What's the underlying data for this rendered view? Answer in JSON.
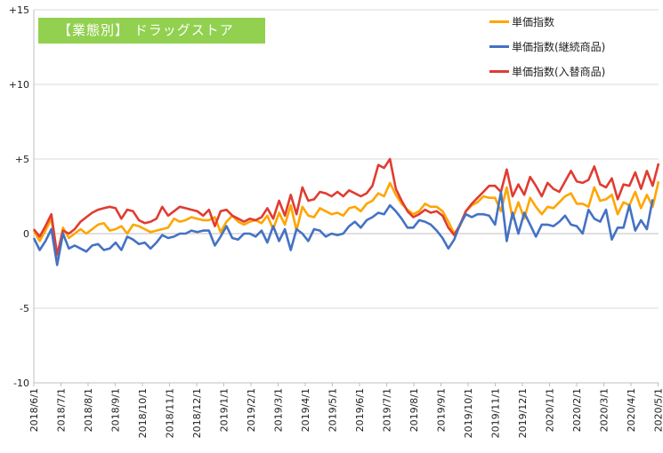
{
  "chart_data": {
    "type": "line",
    "title": "【業態別】 ドラッグストア",
    "xlabel": "",
    "ylabel": "",
    "ylim": [
      -10,
      15
    ],
    "y_ticks": [
      15,
      10,
      5,
      0,
      -5,
      -10
    ],
    "y_tick_labels": [
      "+15",
      "+10",
      "+5",
      "0",
      "-5",
      "-10"
    ],
    "grid": true,
    "legend_position": "top-right",
    "x_tick_labels": [
      "2018/6/1",
      "2018/7/1",
      "2018/8/1",
      "2018/9/1",
      "2018/10/1",
      "2018/11/1",
      "2018/12/1",
      "2019/1/1",
      "2019/2/1",
      "2019/3/1",
      "2019/4/1",
      "2019/5/1",
      "2019/6/1",
      "2019/7/1",
      "2019/8/1",
      "2019/9/1",
      "2019/10/1",
      "2019/11/1",
      "2019/12/1",
      "2020/1/1",
      "2020/2/1",
      "2020/3/1",
      "2020/4/1",
      "2020/5/1"
    ],
    "series": [
      {
        "name": "単価指数",
        "color": "#ffa500",
        "values": [
          0.2,
          -0.5,
          0.2,
          1.0,
          -1.6,
          0.4,
          -0.3,
          0.0,
          0.3,
          0.0,
          0.3,
          0.6,
          0.7,
          0.2,
          0.3,
          0.5,
          0.0,
          0.6,
          0.5,
          0.3,
          0.1,
          0.2,
          0.3,
          0.4,
          1.0,
          0.8,
          0.9,
          1.1,
          1.0,
          0.9,
          0.9,
          1.1,
          0.1,
          0.8,
          1.2,
          0.8,
          0.6,
          0.8,
          0.9,
          0.7,
          1.2,
          0.3,
          1.4,
          0.6,
          1.9,
          0.2,
          1.8,
          1.2,
          1.1,
          1.7,
          1.5,
          1.3,
          1.4,
          1.2,
          1.7,
          1.8,
          1.5,
          2.0,
          2.2,
          2.7,
          2.5,
          3.4,
          2.6,
          2.0,
          1.6,
          1.3,
          1.5,
          2.0,
          1.8,
          1.8,
          1.5,
          0.8,
          0.0,
          0.5,
          1.5,
          1.9,
          2.1,
          2.5,
          2.4,
          2.4,
          1.5,
          3.1,
          1.0,
          2.1,
          1.0,
          2.4,
          1.8,
          1.3,
          1.8,
          1.7,
          2.1,
          2.5,
          2.7,
          2.0,
          2.0,
          1.8,
          3.1,
          2.2,
          2.3,
          2.6,
          1.3,
          2.1,
          1.9,
          2.8,
          1.7,
          2.6,
          1.8,
          3.5
        ]
      },
      {
        "name": "単価指数(継続商品)",
        "color": "#4472c4",
        "values": [
          -0.3,
          -1.1,
          -0.5,
          0.3,
          -2.1,
          0.0,
          -1.0,
          -0.8,
          -1.0,
          -1.2,
          -0.8,
          -0.7,
          -1.1,
          -1.0,
          -0.6,
          -1.1,
          -0.2,
          -0.4,
          -0.7,
          -0.6,
          -1.0,
          -0.6,
          -0.1,
          -0.3,
          -0.2,
          0.0,
          0.0,
          0.2,
          0.1,
          0.2,
          0.2,
          -0.8,
          -0.2,
          0.5,
          -0.3,
          -0.4,
          0.0,
          0.0,
          -0.2,
          0.2,
          -0.6,
          0.5,
          -0.5,
          0.3,
          -1.1,
          0.3,
          0.0,
          -0.5,
          0.3,
          0.2,
          -0.2,
          0.0,
          -0.1,
          0.0,
          0.5,
          0.8,
          0.4,
          0.9,
          1.1,
          1.4,
          1.3,
          1.9,
          1.5,
          1.0,
          0.4,
          0.4,
          0.9,
          0.8,
          0.6,
          0.2,
          -0.3,
          -1.0,
          -0.4,
          0.6,
          1.3,
          1.1,
          1.3,
          1.3,
          1.2,
          0.6,
          2.8,
          -0.5,
          1.4,
          0.0,
          1.4,
          0.6,
          -0.2,
          0.6,
          0.6,
          0.5,
          0.8,
          1.2,
          0.6,
          0.5,
          0.0,
          1.6,
          1.0,
          0.8,
          1.6,
          -0.4,
          0.4,
          0.4,
          1.9,
          0.2,
          0.9,
          0.3,
          2.3
        ]
      },
      {
        "name": "単価指数(入替商品)",
        "color": "#e03c31",
        "values": [
          0.3,
          -0.2,
          0.5,
          1.3,
          -1.4,
          0.2,
          0.0,
          0.3,
          0.8,
          1.1,
          1.4,
          1.6,
          1.7,
          1.8,
          1.7,
          1.0,
          1.6,
          1.5,
          0.9,
          0.7,
          0.8,
          1.0,
          1.8,
          1.2,
          1.5,
          1.8,
          1.7,
          1.6,
          1.5,
          1.2,
          1.6,
          0.5,
          1.5,
          1.6,
          1.2,
          1.0,
          0.8,
          1.0,
          0.9,
          1.1,
          1.7,
          1.0,
          2.2,
          1.2,
          2.6,
          1.3,
          3.1,
          2.2,
          2.3,
          2.8,
          2.7,
          2.5,
          2.8,
          2.5,
          2.9,
          2.7,
          2.5,
          2.7,
          3.2,
          4.6,
          4.4,
          5.0,
          3.0,
          2.2,
          1.5,
          1.1,
          1.3,
          1.6,
          1.4,
          1.5,
          1.2,
          0.4,
          -0.1,
          0.6,
          1.5,
          2.0,
          2.4,
          2.8,
          3.2,
          3.2,
          2.8,
          4.3,
          2.5,
          3.3,
          2.6,
          3.8,
          3.2,
          2.5,
          3.4,
          3.0,
          2.8,
          3.5,
          4.2,
          3.5,
          3.4,
          3.6,
          4.5,
          3.3,
          3.1,
          3.7,
          2.3,
          3.3,
          3.2,
          4.1,
          3.0,
          4.2,
          3.2,
          4.7
        ]
      }
    ]
  }
}
